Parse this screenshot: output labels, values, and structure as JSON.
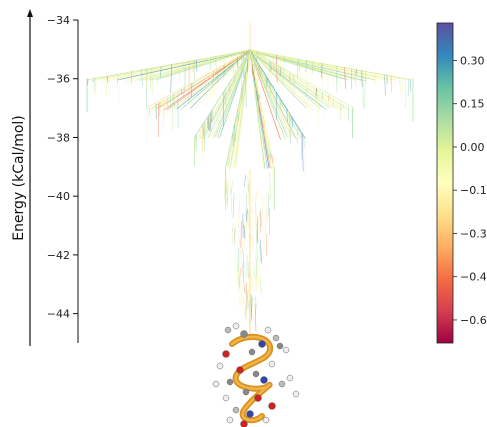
{
  "chart_data": {
    "type": "tree",
    "ylabel": "Energy (kCal/mol)",
    "ylim": [
      -45,
      -34
    ],
    "y_ticks": [
      -34,
      -36,
      -38,
      -40,
      -42,
      -44
    ],
    "y_tick_labels": [
      "−34",
      "−36",
      "−38",
      "−40",
      "−42",
      "−44"
    ],
    "grid": false,
    "root_energy": -35.0,
    "branch_levels": [
      {
        "energy": -36.0,
        "spread": 1.0
      },
      {
        "energy": -37.0,
        "spread": 0.63
      },
      {
        "energy": -38.0,
        "spread": 0.34
      },
      {
        "energy": -39.0,
        "spread": 0.15
      }
    ],
    "funnel_bottom_energy": -44.8,
    "colorbar": {
      "min": -0.68,
      "max": 0.43,
      "ticks": [
        0.3,
        0.15,
        0.0,
        -0.15,
        -0.3,
        -0.45,
        -0.6
      ],
      "tick_labels": [
        "0.30",
        "0.15",
        "0.00",
        "−0.15",
        "−0.30",
        "−0.45",
        "−0.60"
      ],
      "colormap": [
        "#9e0142",
        "#d53e4f",
        "#f46d43",
        "#fdae61",
        "#fee08b",
        "#ffffbf",
        "#e6f598",
        "#abdda4",
        "#66c2a5",
        "#3288bd",
        "#5e4fa2"
      ]
    }
  },
  "molecule": {
    "name": "peptide-helix-structure"
  }
}
